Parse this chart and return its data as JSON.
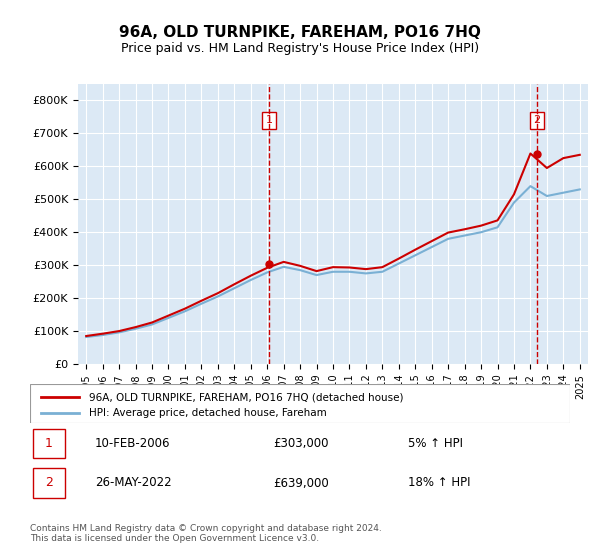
{
  "title": "96A, OLD TURNPIKE, FAREHAM, PO16 7HQ",
  "subtitle": "Price paid vs. HM Land Registry's House Price Index (HPI)",
  "ylabel_ticks": [
    "£0",
    "£100K",
    "£200K",
    "£300K",
    "£400K",
    "£500K",
    "£600K",
    "£700K",
    "£800K"
  ],
  "ytick_values": [
    0,
    100000,
    200000,
    300000,
    400000,
    500000,
    600000,
    700000,
    800000
  ],
  "ylim": [
    0,
    850000
  ],
  "xlim_min": 1994.5,
  "xlim_max": 2025.5,
  "bg_color": "#dce9f5",
  "plot_bg": "#dce9f5",
  "legend_label_red": "96A, OLD TURNPIKE, FAREHAM, PO16 7HQ (detached house)",
  "legend_label_blue": "HPI: Average price, detached house, Fareham",
  "marker1_year": 2006.11,
  "marker1_price": 303000,
  "marker1_label": "1",
  "marker1_date": "10-FEB-2006",
  "marker1_price_str": "£303,000",
  "marker1_hpi": "5% ↑ HPI",
  "marker2_year": 2022.4,
  "marker2_price": 639000,
  "marker2_label": "2",
  "marker2_date": "26-MAY-2022",
  "marker2_price_str": "£639,000",
  "marker2_hpi": "18% ↑ HPI",
  "footer": "Contains HM Land Registry data © Crown copyright and database right 2024.\nThis data is licensed under the Open Government Licence v3.0.",
  "hpi_years": [
    1995,
    1996,
    1997,
    1998,
    1999,
    2000,
    2001,
    2002,
    2003,
    2004,
    2005,
    2006,
    2007,
    2008,
    2009,
    2010,
    2011,
    2012,
    2013,
    2014,
    2015,
    2016,
    2017,
    2018,
    2019,
    2020,
    2021,
    2022,
    2023,
    2024,
    2025
  ],
  "hpi_values": [
    82000,
    88000,
    96000,
    107000,
    120000,
    140000,
    160000,
    183000,
    205000,
    230000,
    255000,
    278000,
    295000,
    285000,
    270000,
    280000,
    280000,
    275000,
    280000,
    305000,
    330000,
    355000,
    380000,
    390000,
    400000,
    415000,
    490000,
    540000,
    510000,
    520000,
    530000
  ],
  "prop_years": [
    1995,
    1996,
    1997,
    1998,
    1999,
    2000,
    2001,
    2002,
    2003,
    2004,
    2005,
    2006,
    2007,
    2008,
    2009,
    2010,
    2011,
    2012,
    2013,
    2014,
    2015,
    2016,
    2017,
    2018,
    2019,
    2020,
    2021,
    2022,
    2023,
    2024,
    2025
  ],
  "prop_values": [
    85000,
    92000,
    100000,
    112000,
    126000,
    147000,
    168000,
    192000,
    215000,
    242000,
    268000,
    292000,
    310000,
    298000,
    282000,
    294000,
    293000,
    288000,
    294000,
    320000,
    347000,
    373000,
    399000,
    409000,
    420000,
    436000,
    515000,
    639000,
    595000,
    625000,
    635000
  ],
  "red_color": "#cc0000",
  "blue_color": "#7ab0d4",
  "vline_color": "#cc0000",
  "marker_box_color": "#cc0000",
  "xtick_years": [
    1995,
    1996,
    1997,
    1998,
    1999,
    2000,
    2001,
    2002,
    2003,
    2004,
    2005,
    2006,
    2007,
    2008,
    2009,
    2010,
    2011,
    2012,
    2013,
    2014,
    2015,
    2016,
    2017,
    2018,
    2019,
    2020,
    2021,
    2022,
    2023,
    2024,
    2025
  ]
}
